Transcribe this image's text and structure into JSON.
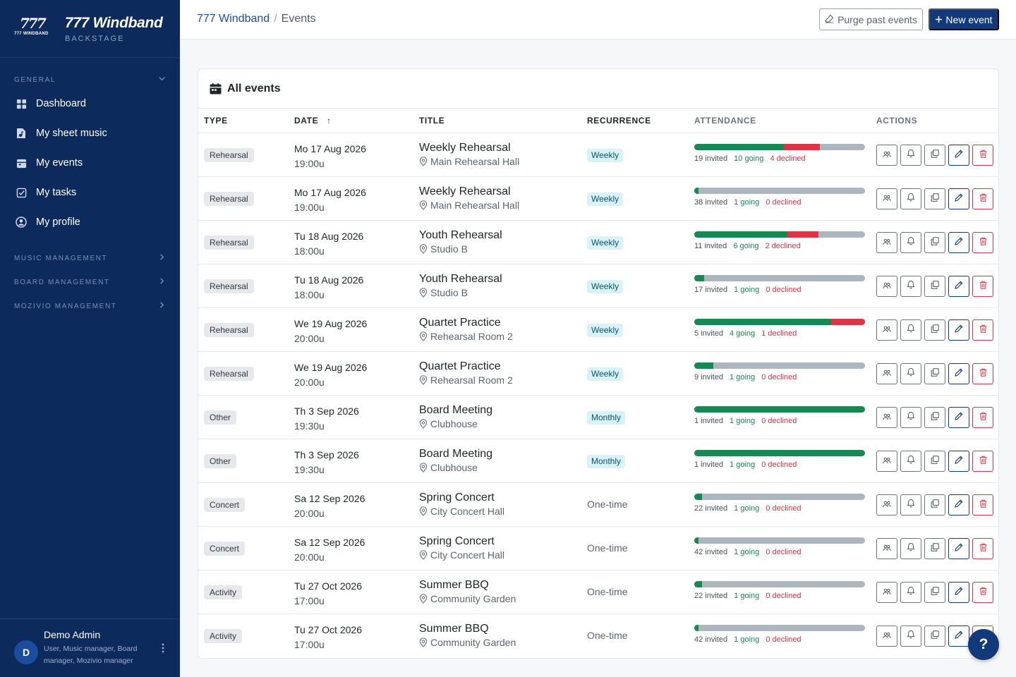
{
  "brand": {
    "logo_number": "777",
    "logo_sub": "777 WINDBAND",
    "title": "777 Windband",
    "subtitle": "BACKSTAGE"
  },
  "sidebar": {
    "general_label": "GENERAL",
    "items": [
      {
        "label": "Dashboard",
        "icon": "dashboard-icon"
      },
      {
        "label": "My sheet music",
        "icon": "sheet-music-icon"
      },
      {
        "label": "My events",
        "icon": "calendar-icon"
      },
      {
        "label": "My tasks",
        "icon": "checkbox-icon"
      },
      {
        "label": "My profile",
        "icon": "user-circle-icon"
      }
    ],
    "sections": [
      "MUSIC MANAGEMENT",
      "BOARD MANAGEMENT",
      "MOZIVIO MANAGEMENT"
    ]
  },
  "user": {
    "initial": "D",
    "name": "Demo Admin",
    "roles": "User, Music manager, Board manager, Mozivio manager"
  },
  "header": {
    "breadcrumb_root": "777 Windband",
    "breadcrumb_sep": "/",
    "breadcrumb_current": "Events",
    "purge_label": "Purge past events",
    "new_label": "New event"
  },
  "card": {
    "title": "All events"
  },
  "table": {
    "headers": {
      "type": "TYPE",
      "date": "DATE",
      "sort_arrow": "↑",
      "title": "TITLE",
      "recurrence": "RECURRENCE",
      "attendance": "ATTENDANCE",
      "actions": "ACTIONS"
    },
    "rows": [
      {
        "type": "Rehearsal",
        "date": "Mo 17 Aug 2026",
        "time": "19:00u",
        "title": "Weekly Rehearsal",
        "location": "Main Rehearsal Hall",
        "recurrence": "Weekly",
        "recurrence_badge": true,
        "invited_n": 19,
        "going_n": 10,
        "declined_n": 4,
        "invited": "19 invited",
        "going": "10 going",
        "declined": "4 declined"
      },
      {
        "type": "Rehearsal",
        "date": "Mo 17 Aug 2026",
        "time": "19:00u",
        "title": "Weekly Rehearsal",
        "location": "Main Rehearsal Hall",
        "recurrence": "Weekly",
        "recurrence_badge": true,
        "invited_n": 38,
        "going_n": 1,
        "declined_n": 0,
        "invited": "38 invited",
        "going": "1 going",
        "declined": "0 declined"
      },
      {
        "type": "Rehearsal",
        "date": "Tu 18 Aug 2026",
        "time": "18:00u",
        "title": "Youth Rehearsal",
        "location": "Studio B",
        "recurrence": "Weekly",
        "recurrence_badge": true,
        "invited_n": 11,
        "going_n": 6,
        "declined_n": 2,
        "invited": "11 invited",
        "going": "6 going",
        "declined": "2 declined"
      },
      {
        "type": "Rehearsal",
        "date": "Tu 18 Aug 2026",
        "time": "18:00u",
        "title": "Youth Rehearsal",
        "location": "Studio B",
        "recurrence": "Weekly",
        "recurrence_badge": true,
        "invited_n": 17,
        "going_n": 1,
        "declined_n": 0,
        "invited": "17 invited",
        "going": "1 going",
        "declined": "0 declined"
      },
      {
        "type": "Rehearsal",
        "date": "We 19 Aug 2026",
        "time": "20:00u",
        "title": "Quartet Practice",
        "location": "Rehearsal Room 2",
        "recurrence": "Weekly",
        "recurrence_badge": true,
        "invited_n": 5,
        "going_n": 4,
        "declined_n": 1,
        "invited": "5 invited",
        "going": "4 going",
        "declined": "1 declined"
      },
      {
        "type": "Rehearsal",
        "date": "We 19 Aug 2026",
        "time": "20:00u",
        "title": "Quartet Practice",
        "location": "Rehearsal Room 2",
        "recurrence": "Weekly",
        "recurrence_badge": true,
        "invited_n": 9,
        "going_n": 1,
        "declined_n": 0,
        "invited": "9 invited",
        "going": "1 going",
        "declined": "0 declined"
      },
      {
        "type": "Other",
        "date": "Th 3 Sep 2026",
        "time": "19:30u",
        "title": "Board Meeting",
        "location": "Clubhouse",
        "recurrence": "Monthly",
        "recurrence_badge": true,
        "invited_n": 1,
        "going_n": 1,
        "declined_n": 0,
        "invited": "1 invited",
        "going": "1 going",
        "declined": "0 declined"
      },
      {
        "type": "Other",
        "date": "Th 3 Sep 2026",
        "time": "19:30u",
        "title": "Board Meeting",
        "location": "Clubhouse",
        "recurrence": "Monthly",
        "recurrence_badge": true,
        "invited_n": 1,
        "going_n": 1,
        "declined_n": 0,
        "invited": "1 invited",
        "going": "1 going",
        "declined": "0 declined"
      },
      {
        "type": "Concert",
        "date": "Sa 12 Sep 2026",
        "time": "20:00u",
        "title": "Spring Concert",
        "location": "City Concert Hall",
        "recurrence": "One-time",
        "recurrence_badge": false,
        "invited_n": 22,
        "going_n": 1,
        "declined_n": 0,
        "invited": "22 invited",
        "going": "1 going",
        "declined": "0 declined"
      },
      {
        "type": "Concert",
        "date": "Sa 12 Sep 2026",
        "time": "20:00u",
        "title": "Spring Concert",
        "location": "City Concert Hall",
        "recurrence": "One-time",
        "recurrence_badge": false,
        "invited_n": 42,
        "going_n": 1,
        "declined_n": 0,
        "invited": "42 invited",
        "going": "1 going",
        "declined": "0 declined"
      },
      {
        "type": "Activity",
        "date": "Tu 27 Oct 2026",
        "time": "17:00u",
        "title": "Summer BBQ",
        "location": "Community Garden",
        "recurrence": "One-time",
        "recurrence_badge": false,
        "invited_n": 22,
        "going_n": 1,
        "declined_n": 0,
        "invited": "22 invited",
        "going": "1 going",
        "declined": "0 declined"
      },
      {
        "type": "Activity",
        "date": "Tu 27 Oct 2026",
        "time": "17:00u",
        "title": "Summer BBQ",
        "location": "Community Garden",
        "recurrence": "One-time",
        "recurrence_badge": false,
        "invited_n": 42,
        "going_n": 1,
        "declined_n": 0,
        "invited": "42 invited",
        "going": "1 going",
        "declined": "0 declined"
      }
    ]
  },
  "help_label": "?",
  "colors": {
    "sidebar": "#0d2a5c",
    "primary": "#123a7a",
    "going": "#198754",
    "declined": "#dc3545",
    "pending": "#adb5bd"
  }
}
